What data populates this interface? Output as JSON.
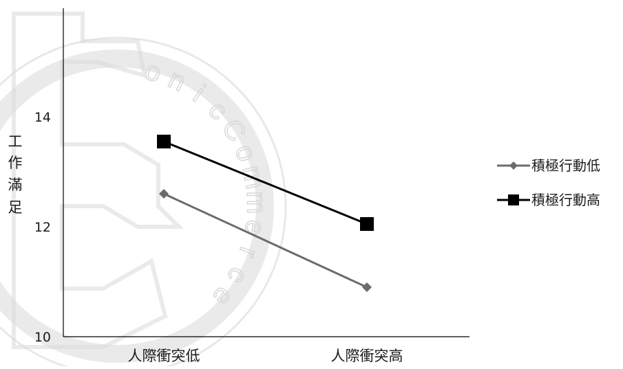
{
  "chart_data": {
    "type": "line",
    "title": "",
    "xlabel": "",
    "ylabel": "工作滿足",
    "ylabel_chars": [
      "工",
      "作",
      "滿",
      "足"
    ],
    "categories": [
      "人際衝突低",
      "人際衝突高"
    ],
    "yticks": [
      10,
      12,
      14
    ],
    "ylim": [
      10,
      16
    ],
    "grid": false,
    "legend_position": "right",
    "series": [
      {
        "name": "積極行動低",
        "values": [
          12.6,
          10.9
        ],
        "color": "#6b6b6b",
        "marker": "diamond"
      },
      {
        "name": "積極行動高",
        "values": [
          13.55,
          12.05
        ],
        "color": "#000000",
        "marker": "square"
      }
    ]
  },
  "watermark": {
    "letters": [
      "o",
      "n",
      "i",
      "c",
      "C",
      "o",
      "m",
      "m",
      "e",
      "r",
      "c",
      "e"
    ],
    "color": "#d9d9d9"
  }
}
